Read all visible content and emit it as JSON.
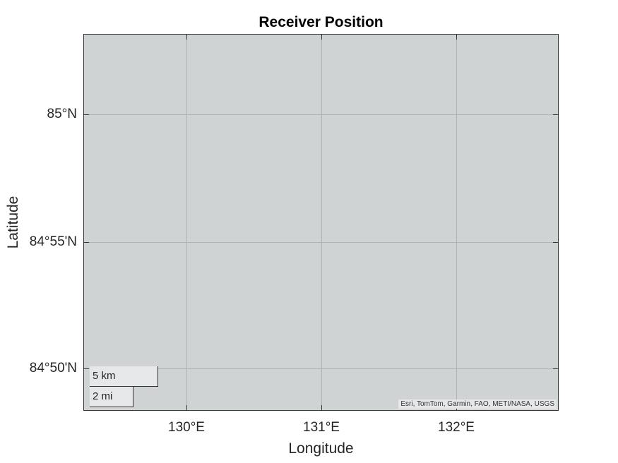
{
  "map": {
    "title": "Receiver Position",
    "xlabel": "Longitude",
    "ylabel": "Latitude",
    "y_ticks": [
      "85°N",
      "84°55'N",
      "84°50'N"
    ],
    "x_ticks": [
      "130°E",
      "131°E",
      "132°E"
    ],
    "grid": true,
    "basemap_color": "#d0d3d4",
    "scalebar": {
      "km_label": "5 km",
      "mi_label": "2 mi"
    },
    "attribution": "Esri, TomTom, Garmin, FAO, METI/NASA, USGS"
  }
}
